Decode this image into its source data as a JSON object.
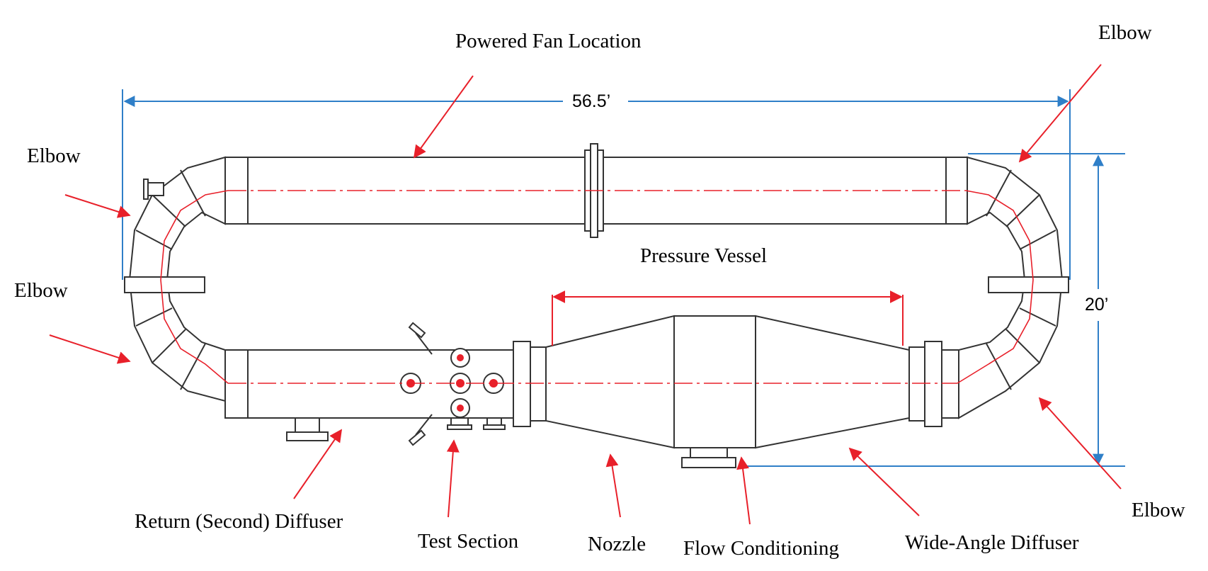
{
  "diagram": {
    "dimensions": {
      "length": "56.5’",
      "height": "20’"
    },
    "labels": {
      "powered_fan": "Powered Fan Location",
      "elbow_top_right": "Elbow",
      "elbow_top_left": "Elbow",
      "elbow_mid_left": "Elbow",
      "elbow_bottom_right": "Elbow",
      "pressure_vessel": "Pressure Vessel",
      "return_diffuser": "Return (Second) Diffuser",
      "test_section": "Test Section",
      "nozzle": "Nozzle",
      "flow_conditioning": "Flow Conditioning",
      "wide_angle_diffuser": "Wide-Angle Diffuser"
    },
    "colors": {
      "pipe": "#333333",
      "centerline": "#e8202a",
      "arrow": "#e8202a",
      "dimension": "#2f7fc8"
    }
  }
}
